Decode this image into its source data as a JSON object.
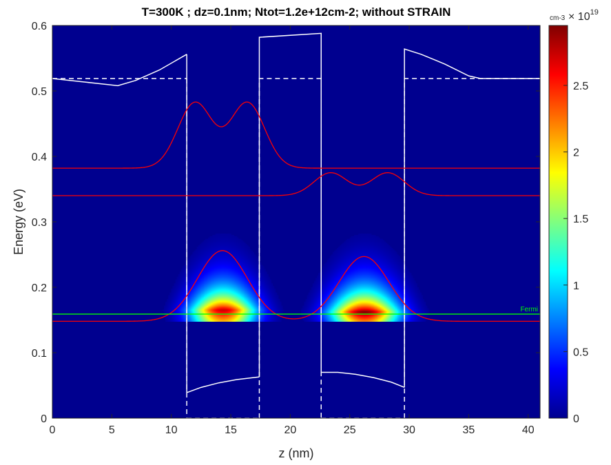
{
  "chart_data": {
    "type": "heatmap",
    "title": "T=300K ; dz=0.1nm; Ntot=1.2e+12cm-2; without STRAIN",
    "xlabel": "z (nm)",
    "ylabel": "Energy (eV)",
    "xlim": [
      0,
      41
    ],
    "ylim": [
      0,
      0.6
    ],
    "x_ticks": [
      0,
      5,
      10,
      15,
      20,
      25,
      30,
      35,
      40
    ],
    "x_tick_labels": [
      "0",
      "5",
      "10",
      "15",
      "20",
      "25",
      "30",
      "35",
      "40"
    ],
    "y_ticks": [
      0,
      0.1,
      0.2,
      0.3,
      0.4,
      0.5,
      0.6
    ],
    "y_tick_labels": [
      "0",
      "0.1",
      "0.2",
      "0.3",
      "0.4",
      "0.5",
      "0.6"
    ],
    "colorbar": {
      "unit_label": "cm-3",
      "exponent_label": "× 10",
      "exponent_sup": "19",
      "range": [
        0,
        2.95
      ],
      "ticks": [
        0,
        0.5,
        1,
        1.5,
        2,
        2.5
      ],
      "tick_labels": [
        "0",
        "0.5",
        "1",
        "1.5",
        "2",
        "2.5"
      ],
      "colormap": "jet"
    },
    "fermi_level": {
      "label": "Fermi",
      "energy": 0.159,
      "color": "#00ff00"
    },
    "conduction_band": {
      "color": "#ffffff",
      "segments": [
        [
          [
            0,
            0.519
          ],
          [
            2,
            0.515
          ],
          [
            4,
            0.511
          ],
          [
            5.5,
            0.508
          ],
          [
            7,
            0.516
          ],
          [
            9,
            0.532
          ],
          [
            11.3,
            0.556
          ]
        ],
        [
          [
            11.3,
            0.556
          ],
          [
            11.3,
            0.039
          ]
        ],
        [
          [
            11.3,
            0.039
          ],
          [
            12.5,
            0.047
          ],
          [
            14,
            0.054
          ],
          [
            15.5,
            0.059
          ],
          [
            17.4,
            0.063
          ]
        ],
        [
          [
            17.4,
            0.063
          ],
          [
            17.4,
            0.582
          ],
          [
            22.6,
            0.588
          ],
          [
            22.6,
            0.07
          ]
        ],
        [
          [
            22.6,
            0.07
          ],
          [
            24,
            0.07
          ],
          [
            25.5,
            0.067
          ],
          [
            27,
            0.062
          ],
          [
            28.5,
            0.055
          ],
          [
            29.6,
            0.047
          ]
        ],
        [
          [
            29.6,
            0.047
          ],
          [
            29.6,
            0.564
          ],
          [
            31,
            0.556
          ],
          [
            33,
            0.541
          ],
          [
            35,
            0.523
          ],
          [
            36,
            0.519
          ],
          [
            41,
            0.519
          ]
        ]
      ]
    },
    "dashed_band_edge": {
      "color": "#ffffff",
      "segments": [
        [
          [
            0,
            0.519
          ],
          [
            11.3,
            0.519
          ]
        ],
        [
          [
            11.3,
            0.519
          ],
          [
            11.3,
            0
          ]
        ],
        [
          [
            11.3,
            0
          ],
          [
            17.4,
            0
          ]
        ],
        [
          [
            17.4,
            0
          ],
          [
            17.4,
            0.519
          ],
          [
            22.6,
            0.519
          ],
          [
            22.6,
            0
          ]
        ],
        [
          [
            22.6,
            0
          ],
          [
            29.6,
            0
          ]
        ],
        [
          [
            29.6,
            0
          ],
          [
            29.6,
            0.519
          ],
          [
            41,
            0.519
          ]
        ]
      ]
    },
    "subbands": [
      {
        "name": "",
        "energy": 0.148,
        "center": 14.3,
        "center2": 26.2,
        "amp": 0.108,
        "amp2": 0.099,
        "width": 2.1,
        "color": "#ff0000",
        "shape": "double_gauss"
      },
      {
        "name": "",
        "energy": 0.34,
        "center": 25.8,
        "amp": 0.035,
        "width": 1.4,
        "split": 2.4,
        "color": "#ff0000",
        "shape": "qw2_excited"
      },
      {
        "name": "",
        "energy": 0.382,
        "center": 14.2,
        "amp": 0.1,
        "width": 1.45,
        "split": 2.2,
        "color": "#ff0000",
        "shape": "qw1_excited"
      }
    ],
    "density_blobs": [
      {
        "z_center": 14.3,
        "z_sigma": 1.9,
        "e_peak": 0.165,
        "e_cut": 0.148,
        "peak": 2.75
      },
      {
        "z_center": 26.2,
        "z_sigma": 2.0,
        "e_peak": 0.162,
        "e_cut": 0.148,
        "peak": 2.95
      }
    ]
  }
}
